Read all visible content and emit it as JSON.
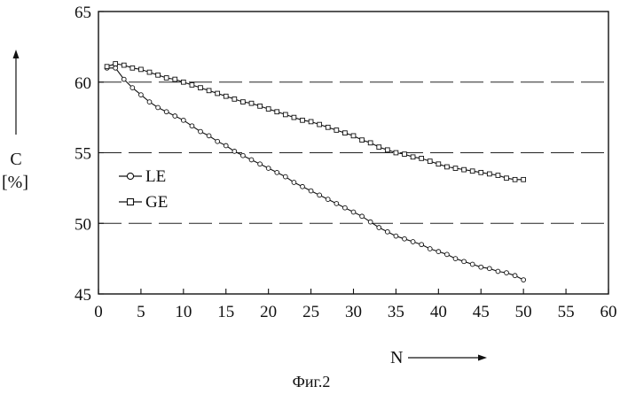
{
  "chart_data": {
    "type": "line",
    "caption": "Фиг.2",
    "xlabel": "N",
    "ylabel": "C",
    "ylabel_unit": "[%]",
    "xlim": [
      0,
      60
    ],
    "ylim": [
      45,
      65
    ],
    "xticks": [
      0,
      5,
      10,
      15,
      20,
      25,
      30,
      35,
      40,
      45,
      50,
      55,
      60
    ],
    "yticks": [
      45,
      50,
      55,
      60,
      65
    ],
    "grid": {
      "horizontal_dashed_at": [
        50,
        55,
        60
      ]
    },
    "legend_placement": "middle-left",
    "colors": {
      "line": "#111111",
      "marker_fill": "#ffffff",
      "grid": "#222222",
      "background": "#ffffff"
    },
    "series": [
      {
        "name": "LE",
        "marker": "circle",
        "x": [
          1,
          2,
          3,
          4,
          5,
          6,
          7,
          8,
          9,
          10,
          11,
          12,
          13,
          14,
          15,
          16,
          17,
          18,
          19,
          20,
          21,
          22,
          23,
          24,
          25,
          26,
          27,
          28,
          29,
          30,
          31,
          32,
          33,
          34,
          35,
          36,
          37,
          38,
          39,
          40,
          41,
          42,
          43,
          44,
          45,
          46,
          47,
          48,
          49,
          50
        ],
        "values": [
          61.0,
          61.0,
          60.2,
          59.6,
          59.1,
          58.6,
          58.2,
          57.9,
          57.6,
          57.3,
          56.9,
          56.5,
          56.2,
          55.8,
          55.5,
          55.1,
          54.8,
          54.5,
          54.2,
          53.9,
          53.6,
          53.3,
          52.9,
          52.6,
          52.3,
          52.0,
          51.7,
          51.4,
          51.1,
          50.8,
          50.5,
          50.1,
          49.7,
          49.4,
          49.1,
          48.9,
          48.7,
          48.5,
          48.2,
          48.0,
          47.8,
          47.5,
          47.3,
          47.1,
          46.9,
          46.8,
          46.6,
          46.5,
          46.3,
          46.0
        ]
      },
      {
        "name": "GE",
        "marker": "square",
        "x": [
          1,
          2,
          3,
          4,
          5,
          6,
          7,
          8,
          9,
          10,
          11,
          12,
          13,
          14,
          15,
          16,
          17,
          18,
          19,
          20,
          21,
          22,
          23,
          24,
          25,
          26,
          27,
          28,
          29,
          30,
          31,
          32,
          33,
          34,
          35,
          36,
          37,
          38,
          39,
          40,
          41,
          42,
          43,
          44,
          45,
          46,
          47,
          48,
          49,
          50
        ],
        "values": [
          61.1,
          61.3,
          61.2,
          61.0,
          60.9,
          60.7,
          60.5,
          60.3,
          60.2,
          60.0,
          59.8,
          59.6,
          59.4,
          59.2,
          59.0,
          58.8,
          58.6,
          58.5,
          58.3,
          58.1,
          57.9,
          57.7,
          57.5,
          57.3,
          57.2,
          57.0,
          56.8,
          56.6,
          56.4,
          56.2,
          55.9,
          55.7,
          55.4,
          55.2,
          55.0,
          54.9,
          54.7,
          54.6,
          54.4,
          54.2,
          54.0,
          53.9,
          53.8,
          53.7,
          53.6,
          53.5,
          53.4,
          53.2,
          53.1,
          53.1
        ]
      }
    ]
  }
}
